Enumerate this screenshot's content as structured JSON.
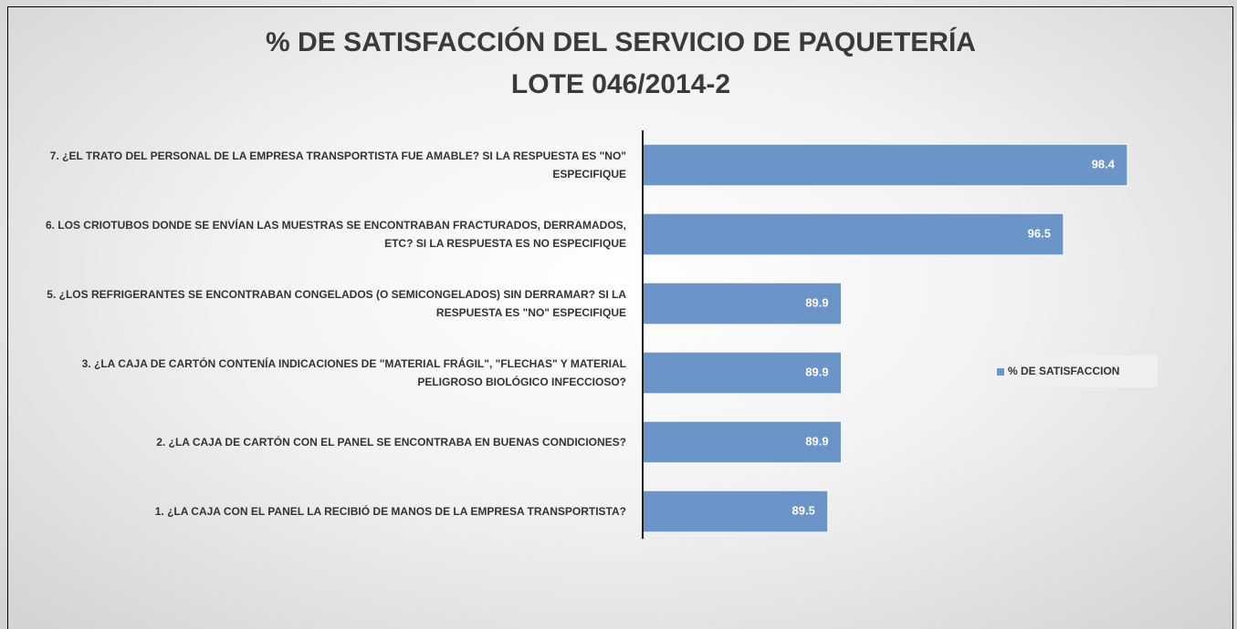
{
  "chart_data": {
    "type": "barh",
    "title": "% DE SATISFACCIÓN DEL SERVICIO DE PAQUETERÍA",
    "subtitle": "LOTE 046/2014-2",
    "categories": [
      "7. ¿EL TRATO DEL PERSONAL DE LA EMPRESA TRANSPORTISTA FUE AMABLE? SI LA RESPUESTA ES \"NO\" ESPECIFIQUE",
      "6. LOS CRIOTUBOS DONDE SE ENVÍAN LAS MUESTRAS SE ENCONTRABAN FRACTURADOS, DERRAMADOS, ETC? SI LA RESPUESTA ES NO ESPECIFIQUE",
      "5. ¿LOS REFRIGERANTES SE ENCONTRABAN CONGELADOS (O SEMICONGELADOS) SIN DERRAMAR? SI LA RESPUESTA ES \"NO\" ESPECIFIQUE",
      "3. ¿LA CAJA DE CARTÓN CONTENÍA INDICACIONES DE \"MATERIAL FRÁGIL\", \"FLECHAS\" Y MATERIAL PELIGROSO BIOLÓGICO INFECCIOSO?",
      "2. ¿LA CAJA DE CARTÓN CON EL PANEL SE ENCONTRABA EN BUENAS CONDICIONES?",
      "1. ¿LA CAJA CON EL PANEL LA RECIBIÓ DE MANOS DE LA EMPRESA TRANSPORTISTA?"
    ],
    "series": [
      {
        "name": "% DE SATISFACCION",
        "color": "#6b94c9",
        "values": [
          98.4,
          96.5,
          89.9,
          89.9,
          89.9,
          89.5
        ]
      }
    ],
    "xlim": [
      84,
      100
    ],
    "legend": "right"
  }
}
